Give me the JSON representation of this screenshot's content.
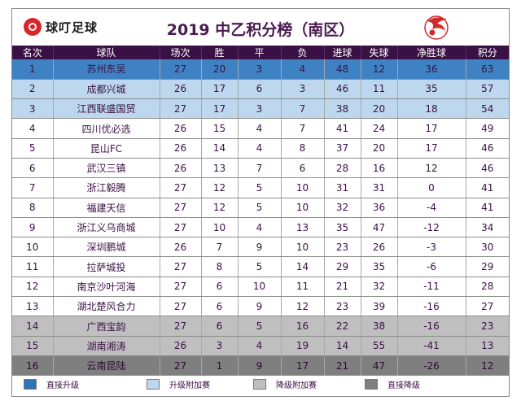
{
  "header": {
    "logo_text": "球叮足球",
    "title": "2019 中乙积分榜（南区）"
  },
  "columns": [
    "名次",
    "球队",
    "场次",
    "胜",
    "平",
    "负",
    "进球",
    "失球",
    "净胜球",
    "积分"
  ],
  "rows": [
    {
      "rank": "1",
      "team": "苏州东吴",
      "played": "27",
      "won": "20",
      "drawn": "3",
      "lost": "4",
      "gf": "48",
      "ga": "12",
      "gd": "36",
      "pts": "63",
      "zone": "promo"
    },
    {
      "rank": "2",
      "team": "成都兴城",
      "played": "26",
      "won": "17",
      "drawn": "6",
      "lost": "3",
      "gf": "46",
      "ga": "11",
      "gd": "35",
      "pts": "57",
      "zone": "promo-po"
    },
    {
      "rank": "3",
      "team": "江西联盛国贸",
      "played": "27",
      "won": "17",
      "drawn": "3",
      "lost": "7",
      "gf": "38",
      "ga": "20",
      "gd": "18",
      "pts": "54",
      "zone": "promo-po"
    },
    {
      "rank": "4",
      "team": "四川优必选",
      "played": "26",
      "won": "15",
      "drawn": "4",
      "lost": "7",
      "gf": "41",
      "ga": "24",
      "gd": "17",
      "pts": "49",
      "zone": "normal"
    },
    {
      "rank": "5",
      "team": "昆山FC",
      "played": "26",
      "won": "14",
      "drawn": "4",
      "lost": "8",
      "gf": "37",
      "ga": "20",
      "gd": "17",
      "pts": "46",
      "zone": "normal"
    },
    {
      "rank": "6",
      "team": "武汉三镇",
      "played": "26",
      "won": "13",
      "drawn": "7",
      "lost": "6",
      "gf": "28",
      "ga": "16",
      "gd": "12",
      "pts": "46",
      "zone": "normal"
    },
    {
      "rank": "7",
      "team": "浙江毅腾",
      "played": "27",
      "won": "12",
      "drawn": "5",
      "lost": "10",
      "gf": "31",
      "ga": "31",
      "gd": "0",
      "pts": "41",
      "zone": "normal"
    },
    {
      "rank": "8",
      "team": "福建天信",
      "played": "27",
      "won": "12",
      "drawn": "5",
      "lost": "10",
      "gf": "32",
      "ga": "36",
      "gd": "-4",
      "pts": "41",
      "zone": "normal"
    },
    {
      "rank": "9",
      "team": "浙江义乌商城",
      "played": "27",
      "won": "10",
      "drawn": "4",
      "lost": "13",
      "gf": "35",
      "ga": "47",
      "gd": "-12",
      "pts": "34",
      "zone": "normal"
    },
    {
      "rank": "10",
      "team": "深圳鹏城",
      "played": "26",
      "won": "7",
      "drawn": "9",
      "lost": "10",
      "gf": "23",
      "ga": "26",
      "gd": "-3",
      "pts": "30",
      "zone": "normal"
    },
    {
      "rank": "11",
      "team": "拉萨城投",
      "played": "27",
      "won": "8",
      "drawn": "5",
      "lost": "14",
      "gf": "29",
      "ga": "35",
      "gd": "-6",
      "pts": "29",
      "zone": "normal"
    },
    {
      "rank": "12",
      "team": "南京沙叶河海",
      "played": "27",
      "won": "6",
      "drawn": "10",
      "lost": "11",
      "gf": "21",
      "ga": "32",
      "gd": "-11",
      "pts": "28",
      "zone": "normal"
    },
    {
      "rank": "13",
      "team": "湖北楚风合力",
      "played": "27",
      "won": "6",
      "drawn": "9",
      "lost": "12",
      "gf": "23",
      "ga": "39",
      "gd": "-16",
      "pts": "27",
      "zone": "normal"
    },
    {
      "rank": "14",
      "team": "广西宝韵",
      "played": "27",
      "won": "6",
      "drawn": "5",
      "lost": "16",
      "gf": "22",
      "ga": "38",
      "gd": "-16",
      "pts": "23",
      "zone": "releg-po"
    },
    {
      "rank": "15",
      "team": "湖南湘涛",
      "played": "26",
      "won": "3",
      "drawn": "4",
      "lost": "19",
      "gf": "14",
      "ga": "55",
      "gd": "-41",
      "pts": "13",
      "zone": "releg-po"
    },
    {
      "rank": "16",
      "team": "云南昆陆",
      "played": "27",
      "won": "1",
      "drawn": "9",
      "lost": "17",
      "gf": "21",
      "ga": "47",
      "gd": "-26",
      "pts": "12",
      "zone": "releg"
    }
  ],
  "legend": [
    {
      "label": "直接升级",
      "color": "#2e75b6"
    },
    {
      "label": "升级附加赛",
      "color": "#bdd7ee"
    },
    {
      "label": "降级附加赛",
      "color": "#bfbfbf"
    },
    {
      "label": "直接降级",
      "color": "#7f7f7f"
    }
  ]
}
